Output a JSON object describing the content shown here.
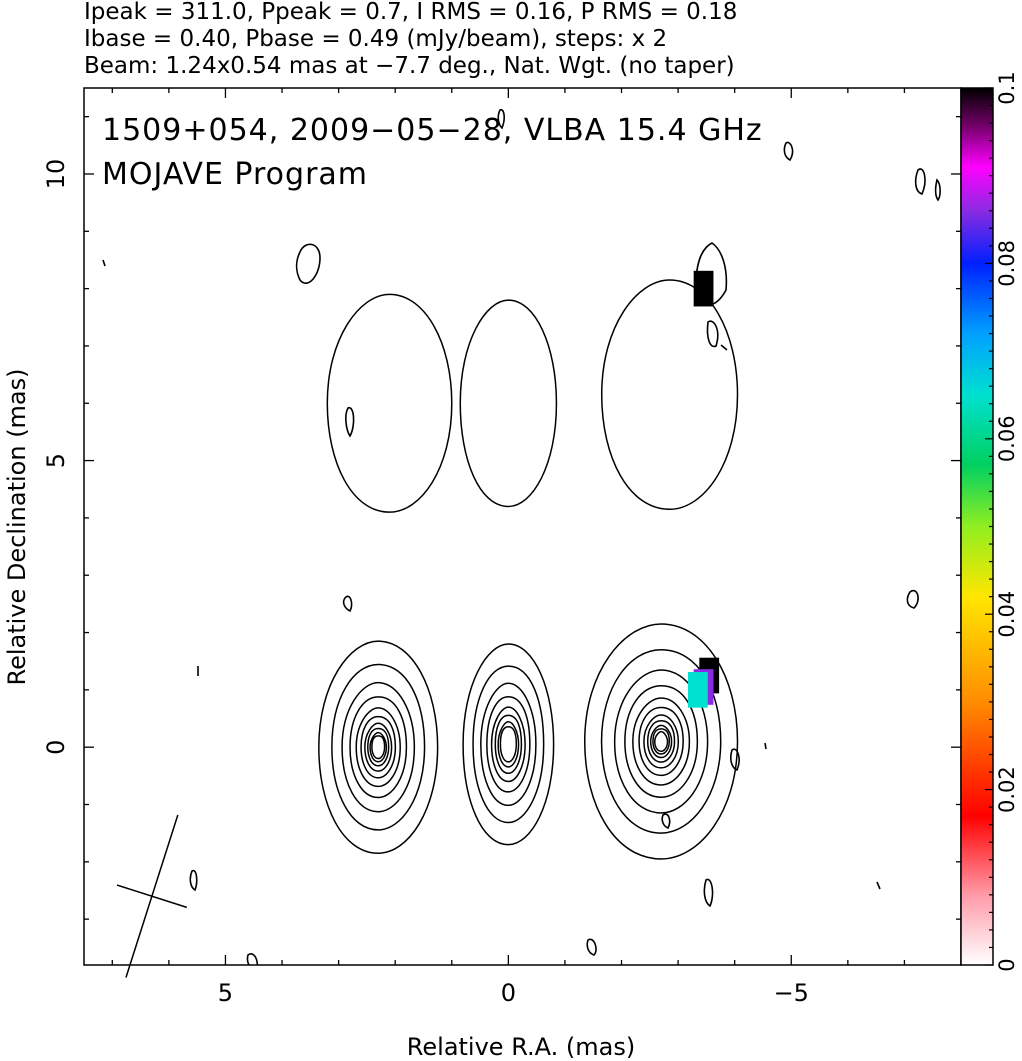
{
  "header": {
    "line1": "Ipeak = 311.0, Ppeak = 0.7, I RMS = 0.16, P RMS = 0.18",
    "line2": "Ibase = 0.40, Pbase = 0.49 (mJy/beam), steps: x 2",
    "line3": "Beam: 1.24x0.54 mas at −7.7 deg., Nat. Wgt. (no taper)"
  },
  "chart_data": {
    "type": "heatmap",
    "title": "1509+054, 2009−05−28, VLBA 15.4 GHz",
    "subtitle": "MOJAVE Program",
    "xlabel": "Relative R.A. (mas)",
    "ylabel": "Relative Declination (mas)",
    "xlim": [
      7.5,
      -8
    ],
    "ylim": [
      -3.8,
      11.5
    ],
    "x_ticks": [
      5,
      0,
      -5
    ],
    "x_tick_labels": [
      "5",
      "0",
      "−5"
    ],
    "y_ticks": [
      0,
      5,
      10
    ],
    "y_tick_labels": [
      "0",
      "5",
      "10"
    ],
    "colorbar": {
      "range": [
        0,
        0.1
      ],
      "ticks": [
        0,
        0.02,
        0.04,
        0.06,
        0.08,
        0.1
      ],
      "tick_labels": [
        "0",
        "0.02",
        "0.04",
        "0.06",
        "0.08",
        "0.1"
      ]
    },
    "contour_groups": [
      {
        "name": "lower-left",
        "center": [
          2.3,
          0.0
        ],
        "rx": 1.05,
        "ry": 1.85,
        "levels": 10
      },
      {
        "name": "lower-middle",
        "center": [
          0.0,
          0.05
        ],
        "rx": 0.8,
        "ry": 1.75,
        "levels": 8
      },
      {
        "name": "lower-right",
        "center": [
          -2.7,
          0.1
        ],
        "rx": 1.35,
        "ry": 2.05,
        "levels": 11
      },
      {
        "name": "upper-left",
        "center": [
          2.1,
          6.0
        ],
        "rx": 1.1,
        "ry": 1.9,
        "levels": 1
      },
      {
        "name": "upper-middle",
        "center": [
          0.0,
          6.0
        ],
        "rx": 0.85,
        "ry": 1.8,
        "levels": 1
      },
      {
        "name": "upper-right",
        "center": [
          -2.85,
          6.15
        ],
        "rx": 1.2,
        "ry": 2.0,
        "levels": 1
      }
    ],
    "beam": {
      "center": [
        6.3,
        -2.6
      ],
      "major_mas": 1.24,
      "minor_mas": 0.54,
      "pa_deg": -7.7
    },
    "polarization_pixels": [
      {
        "x": -3.45,
        "y": 8.0,
        "value": 0.1
      },
      {
        "x": -3.55,
        "y": 1.25,
        "value": 0.1
      },
      {
        "x": -3.45,
        "y": 1.05,
        "value": 0.09
      },
      {
        "x": -3.35,
        "y": 1.0,
        "value": 0.06
      }
    ],
    "grid": false
  }
}
